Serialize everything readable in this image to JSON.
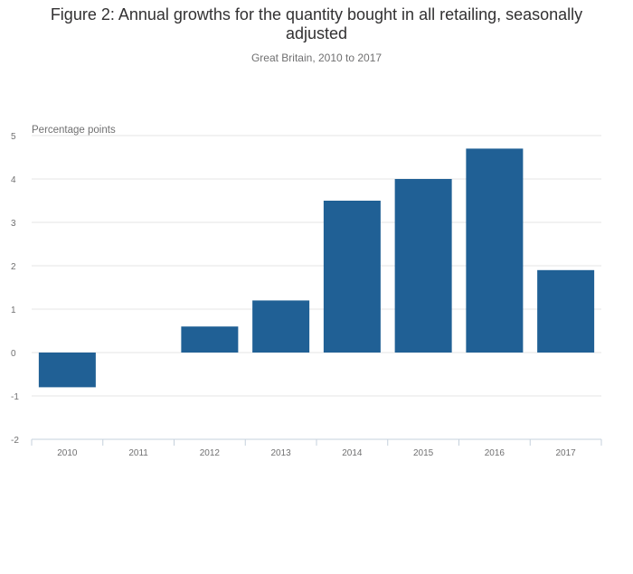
{
  "title": "Figure 2: Annual growths for the quantity bought in all retailing, seasonally adjusted",
  "subtitle": "Great Britain, 2010 to 2017",
  "chart_data": {
    "type": "bar",
    "title": "Figure 2: Annual growths for the quantity bought in all retailing, seasonally adjusted",
    "subtitle": "Great Britain, 2010 to 2017",
    "xlabel": "",
    "ylabel": "Percentage points",
    "categories": [
      "2010",
      "2011",
      "2012",
      "2013",
      "2014",
      "2015",
      "2016",
      "2017"
    ],
    "values": [
      -0.8,
      0.0,
      0.6,
      1.2,
      3.5,
      4.0,
      4.7,
      1.9
    ],
    "ylim": [
      -2,
      5
    ],
    "yticks": [
      "-2",
      "-1",
      "0",
      "1",
      "2",
      "3",
      "4",
      "5"
    ],
    "grid": true,
    "colors": {
      "bar": "#206095",
      "grid": "#e4e4e4",
      "axis": "#c5d0dc",
      "text": "#707071"
    }
  }
}
